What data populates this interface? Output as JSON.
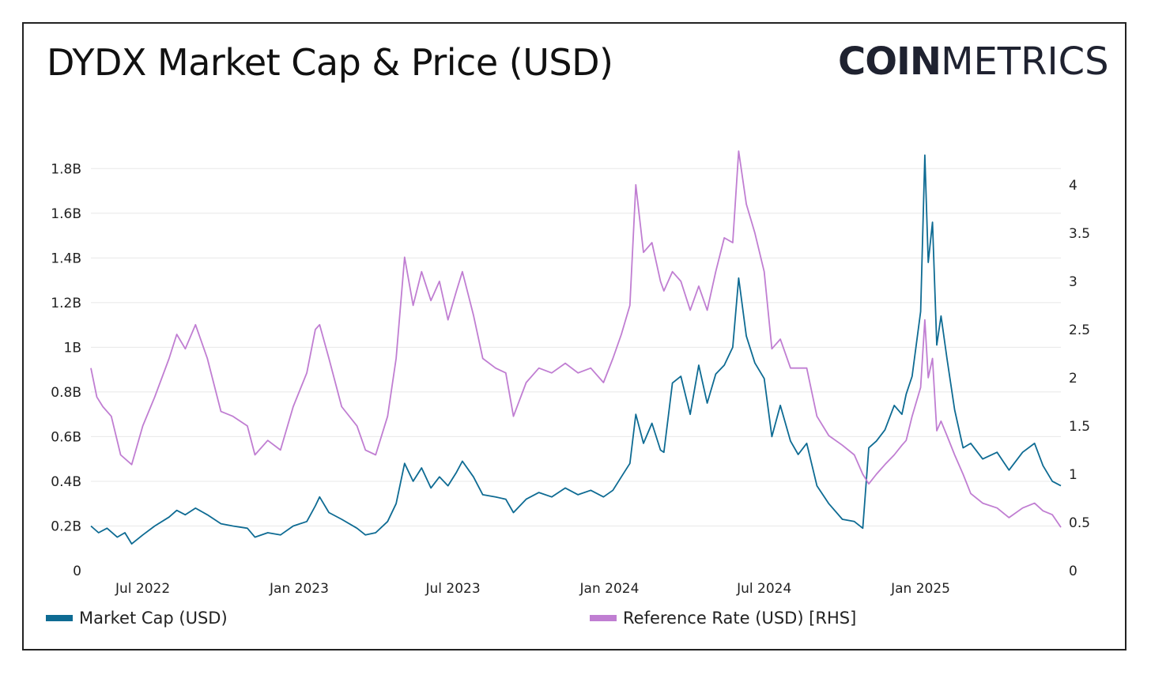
{
  "title": "DYDX Market Cap & Price (USD)",
  "logo": {
    "bold": "COIN",
    "light": "METRICS"
  },
  "colors": {
    "market_cap": "#0e6b93",
    "reference_rate": "#c07ed2"
  },
  "chart_data": {
    "type": "line",
    "title": "DYDX Market Cap & Price (USD)",
    "x_range": [
      "2022-05-01",
      "2025-06-15"
    ],
    "x_ticks": [
      {
        "date": "2022-07-01",
        "label": "Jul 2022"
      },
      {
        "date": "2023-01-01",
        "label": "Jan 2023"
      },
      {
        "date": "2023-07-01",
        "label": "Jul 2023"
      },
      {
        "date": "2024-01-01",
        "label": "Jan 2024"
      },
      {
        "date": "2024-07-01",
        "label": "Jul 2024"
      },
      {
        "date": "2025-01-01",
        "label": "Jan 2025"
      }
    ],
    "y_left": {
      "range": [
        0,
        1.9
      ],
      "ticks": [
        {
          "value": 0,
          "label": "0"
        },
        {
          "value": 0.2,
          "label": "0.2B"
        },
        {
          "value": 0.4,
          "label": "0.4B"
        },
        {
          "value": 0.6,
          "label": "0.6B"
        },
        {
          "value": 0.8,
          "label": "0.8B"
        },
        {
          "value": 1.0,
          "label": "1B"
        },
        {
          "value": 1.2,
          "label": "1.2B"
        },
        {
          "value": 1.4,
          "label": "1.4B"
        },
        {
          "value": 1.6,
          "label": "1.6B"
        },
        {
          "value": 1.8,
          "label": "1.8B"
        }
      ]
    },
    "y_right": {
      "range": [
        0,
        4.4
      ],
      "ticks": [
        {
          "value": 0,
          "label": "0"
        },
        {
          "value": 0.5,
          "label": "0.5"
        },
        {
          "value": 1,
          "label": "1"
        },
        {
          "value": 1.5,
          "label": "1.5"
        },
        {
          "value": 2,
          "label": "2"
        },
        {
          "value": 2.5,
          "label": "2.5"
        },
        {
          "value": 3,
          "label": "3"
        },
        {
          "value": 3.5,
          "label": "3.5"
        },
        {
          "value": 4,
          "label": "4"
        }
      ]
    },
    "grid": true,
    "legend_position": "bottom",
    "series": [
      {
        "name": "Market Cap (USD)",
        "axis": "left",
        "color": "#0e6b93",
        "points": [
          [
            "2022-05-01",
            0.2
          ],
          [
            "2022-05-10",
            0.17
          ],
          [
            "2022-05-20",
            0.19
          ],
          [
            "2022-06-01",
            0.15
          ],
          [
            "2022-06-10",
            0.17
          ],
          [
            "2022-06-18",
            0.12
          ],
          [
            "2022-07-01",
            0.16
          ],
          [
            "2022-07-15",
            0.2
          ],
          [
            "2022-08-01",
            0.24
          ],
          [
            "2022-08-10",
            0.27
          ],
          [
            "2022-08-20",
            0.25
          ],
          [
            "2022-09-01",
            0.28
          ],
          [
            "2022-09-15",
            0.25
          ],
          [
            "2022-10-01",
            0.21
          ],
          [
            "2022-10-15",
            0.2
          ],
          [
            "2022-11-01",
            0.19
          ],
          [
            "2022-11-10",
            0.15
          ],
          [
            "2022-11-25",
            0.17
          ],
          [
            "2022-12-10",
            0.16
          ],
          [
            "2022-12-25",
            0.2
          ],
          [
            "2023-01-10",
            0.22
          ],
          [
            "2023-01-20",
            0.29
          ],
          [
            "2023-01-25",
            0.33
          ],
          [
            "2023-02-05",
            0.26
          ],
          [
            "2023-02-20",
            0.23
          ],
          [
            "2023-03-10",
            0.19
          ],
          [
            "2023-03-20",
            0.16
          ],
          [
            "2023-04-01",
            0.17
          ],
          [
            "2023-04-15",
            0.22
          ],
          [
            "2023-04-25",
            0.3
          ],
          [
            "2023-05-05",
            0.48
          ],
          [
            "2023-05-15",
            0.4
          ],
          [
            "2023-05-25",
            0.46
          ],
          [
            "2023-06-05",
            0.37
          ],
          [
            "2023-06-15",
            0.42
          ],
          [
            "2023-06-25",
            0.38
          ],
          [
            "2023-07-05",
            0.44
          ],
          [
            "2023-07-12",
            0.49
          ],
          [
            "2023-07-25",
            0.42
          ],
          [
            "2023-08-05",
            0.34
          ],
          [
            "2023-08-20",
            0.33
          ],
          [
            "2023-09-01",
            0.32
          ],
          [
            "2023-09-10",
            0.26
          ],
          [
            "2023-09-25",
            0.32
          ],
          [
            "2023-10-10",
            0.35
          ],
          [
            "2023-10-25",
            0.33
          ],
          [
            "2023-11-10",
            0.37
          ],
          [
            "2023-11-25",
            0.34
          ],
          [
            "2023-12-10",
            0.36
          ],
          [
            "2023-12-25",
            0.33
          ],
          [
            "2024-01-05",
            0.36
          ],
          [
            "2024-01-15",
            0.42
          ],
          [
            "2024-01-25",
            0.48
          ],
          [
            "2024-02-01",
            0.7
          ],
          [
            "2024-02-10",
            0.57
          ],
          [
            "2024-02-20",
            0.66
          ],
          [
            "2024-03-01",
            0.54
          ],
          [
            "2024-03-05",
            0.53
          ],
          [
            "2024-03-15",
            0.84
          ],
          [
            "2024-03-25",
            0.87
          ],
          [
            "2024-04-05",
            0.7
          ],
          [
            "2024-04-15",
            0.92
          ],
          [
            "2024-04-25",
            0.75
          ],
          [
            "2024-05-05",
            0.88
          ],
          [
            "2024-05-15",
            0.92
          ],
          [
            "2024-05-25",
            1.0
          ],
          [
            "2024-06-01",
            1.31
          ],
          [
            "2024-06-10",
            1.05
          ],
          [
            "2024-06-20",
            0.93
          ],
          [
            "2024-07-01",
            0.86
          ],
          [
            "2024-07-10",
            0.6
          ],
          [
            "2024-07-20",
            0.74
          ],
          [
            "2024-08-01",
            0.58
          ],
          [
            "2024-08-10",
            0.52
          ],
          [
            "2024-08-20",
            0.57
          ],
          [
            "2024-09-01",
            0.38
          ],
          [
            "2024-09-15",
            0.3
          ],
          [
            "2024-10-01",
            0.23
          ],
          [
            "2024-10-15",
            0.22
          ],
          [
            "2024-10-25",
            0.19
          ],
          [
            "2024-11-01",
            0.55
          ],
          [
            "2024-11-10",
            0.58
          ],
          [
            "2024-11-20",
            0.63
          ],
          [
            "2024-12-01",
            0.74
          ],
          [
            "2024-12-10",
            0.7
          ],
          [
            "2024-12-15",
            0.79
          ],
          [
            "2024-12-22",
            0.87
          ],
          [
            "2025-01-01",
            1.16
          ],
          [
            "2025-01-06",
            1.86
          ],
          [
            "2025-01-10",
            1.38
          ],
          [
            "2025-01-15",
            1.56
          ],
          [
            "2025-01-20",
            1.01
          ],
          [
            "2025-01-25",
            1.14
          ],
          [
            "2025-02-01",
            0.95
          ],
          [
            "2025-02-10",
            0.72
          ],
          [
            "2025-02-20",
            0.55
          ],
          [
            "2025-03-01",
            0.57
          ],
          [
            "2025-03-15",
            0.5
          ],
          [
            "2025-04-01",
            0.53
          ],
          [
            "2025-04-15",
            0.45
          ],
          [
            "2025-05-01",
            0.53
          ],
          [
            "2025-05-15",
            0.57
          ],
          [
            "2025-05-25",
            0.47
          ],
          [
            "2025-06-05",
            0.4
          ],
          [
            "2025-06-15",
            0.38
          ]
        ]
      },
      {
        "name": "Reference Rate (USD) [RHS]",
        "axis": "right",
        "color": "#c07ed2",
        "points": [
          [
            "2022-05-01",
            2.1
          ],
          [
            "2022-05-08",
            1.8
          ],
          [
            "2022-05-15",
            1.7
          ],
          [
            "2022-05-25",
            1.6
          ],
          [
            "2022-06-05",
            1.2
          ],
          [
            "2022-06-18",
            1.1
          ],
          [
            "2022-07-01",
            1.5
          ],
          [
            "2022-07-15",
            1.8
          ],
          [
            "2022-08-01",
            2.2
          ],
          [
            "2022-08-10",
            2.45
          ],
          [
            "2022-08-20",
            2.3
          ],
          [
            "2022-09-01",
            2.55
          ],
          [
            "2022-09-15",
            2.2
          ],
          [
            "2022-10-01",
            1.65
          ],
          [
            "2022-10-15",
            1.6
          ],
          [
            "2022-11-01",
            1.5
          ],
          [
            "2022-11-10",
            1.2
          ],
          [
            "2022-11-25",
            1.35
          ],
          [
            "2022-12-10",
            1.25
          ],
          [
            "2022-12-25",
            1.7
          ],
          [
            "2023-01-10",
            2.05
          ],
          [
            "2023-01-20",
            2.5
          ],
          [
            "2023-01-25",
            2.55
          ],
          [
            "2023-02-05",
            2.2
          ],
          [
            "2023-02-20",
            1.7
          ],
          [
            "2023-03-10",
            1.5
          ],
          [
            "2023-03-20",
            1.25
          ],
          [
            "2023-04-01",
            1.2
          ],
          [
            "2023-04-15",
            1.6
          ],
          [
            "2023-04-25",
            2.2
          ],
          [
            "2023-05-05",
            3.25
          ],
          [
            "2023-05-15",
            2.75
          ],
          [
            "2023-05-25",
            3.1
          ],
          [
            "2023-06-05",
            2.8
          ],
          [
            "2023-06-15",
            3.0
          ],
          [
            "2023-06-25",
            2.6
          ],
          [
            "2023-07-05",
            2.9
          ],
          [
            "2023-07-12",
            3.1
          ],
          [
            "2023-07-25",
            2.65
          ],
          [
            "2023-08-05",
            2.2
          ],
          [
            "2023-08-20",
            2.1
          ],
          [
            "2023-09-01",
            2.05
          ],
          [
            "2023-09-10",
            1.6
          ],
          [
            "2023-09-25",
            1.95
          ],
          [
            "2023-10-10",
            2.1
          ],
          [
            "2023-10-25",
            2.05
          ],
          [
            "2023-11-10",
            2.15
          ],
          [
            "2023-11-25",
            2.05
          ],
          [
            "2023-12-10",
            2.1
          ],
          [
            "2023-12-25",
            1.95
          ],
          [
            "2024-01-05",
            2.2
          ],
          [
            "2024-01-15",
            2.45
          ],
          [
            "2024-01-25",
            2.75
          ],
          [
            "2024-02-01",
            4.0
          ],
          [
            "2024-02-10",
            3.3
          ],
          [
            "2024-02-20",
            3.4
          ],
          [
            "2024-03-01",
            3.0
          ],
          [
            "2024-03-05",
            2.9
          ],
          [
            "2024-03-15",
            3.1
          ],
          [
            "2024-03-25",
            3.0
          ],
          [
            "2024-04-05",
            2.7
          ],
          [
            "2024-04-15",
            2.95
          ],
          [
            "2024-04-25",
            2.7
          ],
          [
            "2024-05-05",
            3.1
          ],
          [
            "2024-05-15",
            3.45
          ],
          [
            "2024-05-25",
            3.4
          ],
          [
            "2024-06-01",
            4.35
          ],
          [
            "2024-06-10",
            3.8
          ],
          [
            "2024-06-20",
            3.5
          ],
          [
            "2024-07-01",
            3.1
          ],
          [
            "2024-07-10",
            2.3
          ],
          [
            "2024-07-20",
            2.4
          ],
          [
            "2024-08-01",
            2.1
          ],
          [
            "2024-08-10",
            2.1
          ],
          [
            "2024-08-20",
            2.1
          ],
          [
            "2024-09-01",
            1.6
          ],
          [
            "2024-09-15",
            1.4
          ],
          [
            "2024-10-01",
            1.3
          ],
          [
            "2024-10-15",
            1.2
          ],
          [
            "2024-10-25",
            1.0
          ],
          [
            "2024-11-01",
            0.9
          ],
          [
            "2024-11-10",
            1.0
          ],
          [
            "2024-11-20",
            1.1
          ],
          [
            "2024-12-01",
            1.2
          ],
          [
            "2024-12-10",
            1.3
          ],
          [
            "2024-12-15",
            1.35
          ],
          [
            "2024-12-22",
            1.6
          ],
          [
            "2025-01-01",
            1.9
          ],
          [
            "2025-01-06",
            2.6
          ],
          [
            "2025-01-10",
            2.0
          ],
          [
            "2025-01-15",
            2.2
          ],
          [
            "2025-01-20",
            1.45
          ],
          [
            "2025-01-25",
            1.55
          ],
          [
            "2025-02-01",
            1.4
          ],
          [
            "2025-02-10",
            1.2
          ],
          [
            "2025-02-20",
            1.0
          ],
          [
            "2025-03-01",
            0.8
          ],
          [
            "2025-03-15",
            0.7
          ],
          [
            "2025-04-01",
            0.65
          ],
          [
            "2025-04-15",
            0.55
          ],
          [
            "2025-05-01",
            0.65
          ],
          [
            "2025-05-15",
            0.7
          ],
          [
            "2025-05-25",
            0.62
          ],
          [
            "2025-06-05",
            0.58
          ],
          [
            "2025-06-15",
            0.45
          ]
        ]
      }
    ]
  }
}
